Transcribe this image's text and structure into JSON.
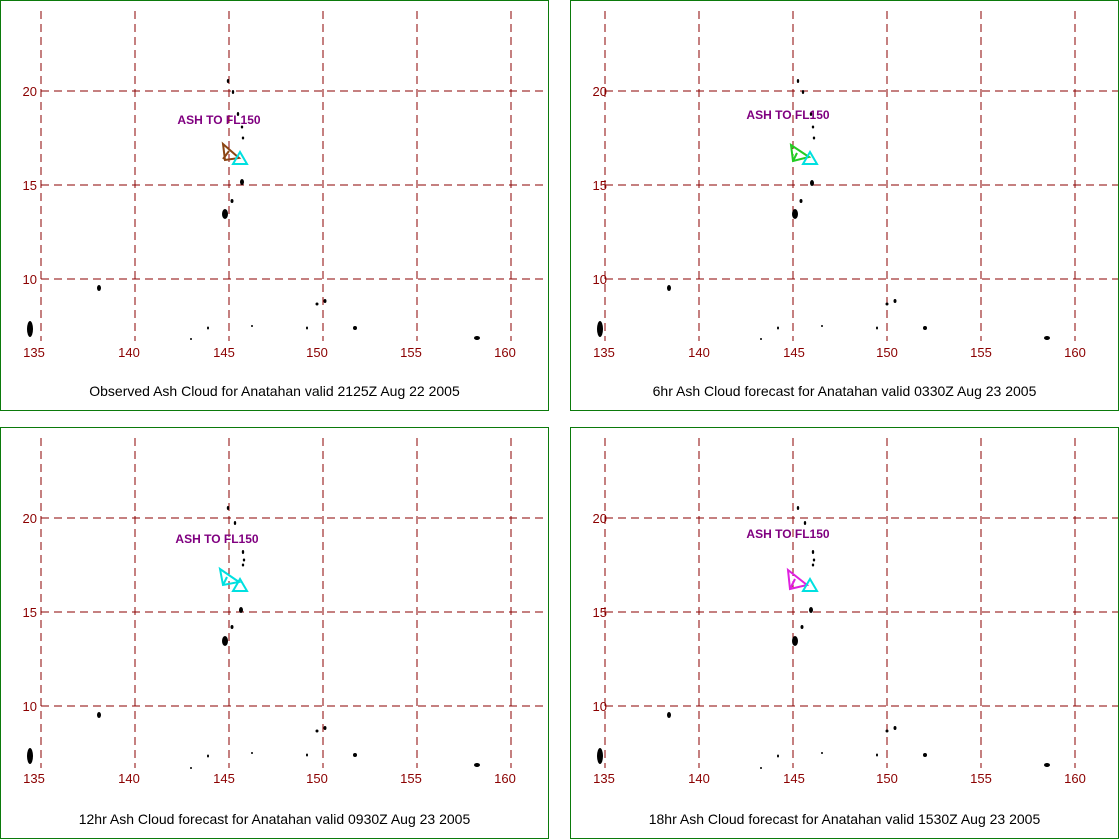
{
  "colors": {
    "frame": "#0b7a0b",
    "grid": "#8b0000",
    "lat_label": "#8b0000",
    "lon_label": "#8b0000",
    "label_text": "#800080",
    "volcano_marker": "#00e0e0"
  },
  "axes": {
    "lat_ticks": [
      "20",
      "15",
      "10"
    ],
    "lon_ticks": [
      "135",
      "140",
      "145",
      "150",
      "155",
      "160"
    ]
  },
  "annotation_text": "ASH TO FL150",
  "panels": [
    {
      "caption": "Observed Ash Cloud for Anatahan valid 2125Z Aug 22 2005",
      "ash_color": "#8b4513"
    },
    {
      "caption": "6hr Ash Cloud forecast for Anatahan valid 0330Z Aug 23 2005",
      "ash_color": "#22cc22"
    },
    {
      "caption": "12hr Ash Cloud forecast for Anatahan valid 0930Z Aug 23 2005",
      "ash_color": "#00e0e0"
    },
    {
      "caption": "18hr Ash Cloud forecast for Anatahan valid 1530Z Aug 23 2005",
      "ash_color": "#e020e0"
    }
  ]
}
